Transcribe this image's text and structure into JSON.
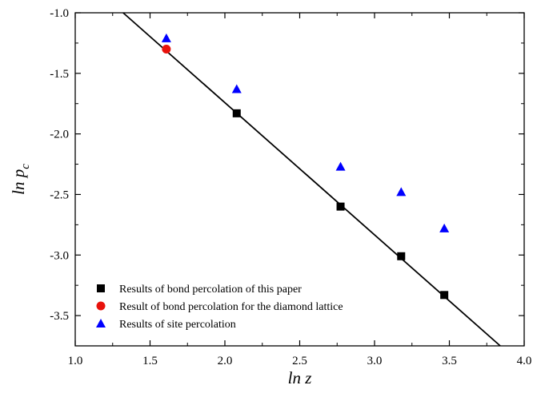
{
  "chart_data": {
    "type": "scatter",
    "xlabel": "ln z",
    "ylabel_main": "ln p",
    "ylabel_sub": "c",
    "xlim": [
      1.0,
      4.0
    ],
    "ylim": [
      -3.75,
      -1.0
    ],
    "xticks": [
      1.0,
      1.5,
      2.0,
      2.5,
      3.0,
      3.5,
      4.0
    ],
    "xtick_labels": [
      "1.0",
      "1.5",
      "2.0",
      "2.5",
      "3.0",
      "3.5",
      "4.0"
    ],
    "yticks": [
      -1.0,
      -1.5,
      -2.0,
      -2.5,
      -3.0,
      -3.5
    ],
    "ytick_labels": [
      "-1.0",
      "-1.5",
      "-2.0",
      "-2.5",
      "-3.0",
      "-3.5"
    ],
    "grid": false,
    "legend_position": "bottom-left",
    "series": [
      {
        "name": "Results of bond percolation of this paper",
        "marker": "square",
        "color": "#000000",
        "x": [
          2.079,
          2.773,
          3.178,
          3.466
        ],
        "y": [
          -1.83,
          -2.6,
          -3.01,
          -3.33
        ]
      },
      {
        "name": "Result of bond percolation for the diamond lattice",
        "marker": "circle",
        "color": "#e8120c",
        "x": [
          1.609
        ],
        "y": [
          -1.3
        ]
      },
      {
        "name": "Results of site percolation",
        "marker": "triangle",
        "color": "#0000ff",
        "x": [
          1.609,
          2.079,
          2.773,
          3.178,
          3.466
        ],
        "y": [
          -1.21,
          -1.63,
          -2.27,
          -2.48,
          -2.78
        ]
      }
    ],
    "fit_line": {
      "color": "#000000",
      "x": [
        1.32,
        3.84
      ],
      "y": [
        -1.0,
        -3.75
      ]
    }
  }
}
